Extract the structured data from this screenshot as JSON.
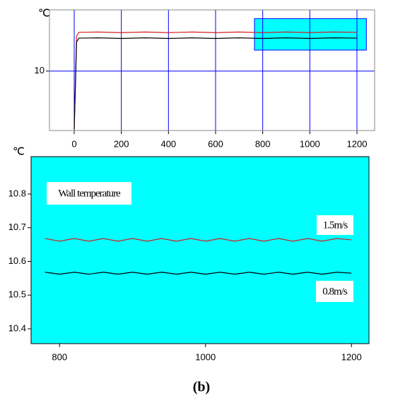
{
  "chart_data": [
    {
      "type": "line",
      "y_unit": "℃",
      "x": [
        0,
        10,
        20,
        100,
        200,
        300,
        400,
        500,
        600,
        700,
        800,
        900,
        1000,
        1100,
        1200
      ],
      "series": [
        {
          "name": "1.5m/s",
          "color": "#d02020",
          "values": [
            9.0,
            10.6,
            10.665,
            10.67,
            10.66,
            10.67,
            10.66,
            10.67,
            10.66,
            10.67,
            10.66,
            10.67,
            10.66,
            10.67,
            10.665
          ]
        },
        {
          "name": "0.8m/s",
          "color": "#000000",
          "values": [
            9.0,
            10.5,
            10.565,
            10.57,
            10.56,
            10.57,
            10.56,
            10.57,
            10.56,
            10.57,
            10.56,
            10.57,
            10.56,
            10.57,
            10.565
          ]
        }
      ],
      "xlim": [
        -105,
        1275
      ],
      "ylim": [
        8.98,
        11.05
      ],
      "xticks": [
        0,
        200,
        400,
        600,
        800,
        1000,
        1200
      ],
      "yticks": [
        10
      ],
      "grid": true,
      "grid_color": "#0000ff",
      "highlight": {
        "xlim": [
          765,
          1240
        ],
        "ylim": [
          10.36,
          10.9
        ],
        "color": "#00ffff"
      }
    },
    {
      "type": "line",
      "y_unit": "℃",
      "x": [
        780,
        800,
        820,
        840,
        860,
        880,
        900,
        920,
        940,
        960,
        980,
        1000,
        1020,
        1040,
        1060,
        1080,
        1100,
        1120,
        1140,
        1160,
        1180,
        1200
      ],
      "series": [
        {
          "name": "1.5m/s",
          "color": "#d02020",
          "values": [
            10.668,
            10.66,
            10.668,
            10.66,
            10.668,
            10.66,
            10.668,
            10.66,
            10.668,
            10.66,
            10.668,
            10.66,
            10.668,
            10.66,
            10.668,
            10.66,
            10.668,
            10.66,
            10.668,
            10.66,
            10.668,
            10.664
          ]
        },
        {
          "name": "0.8m/s",
          "color": "#000000",
          "values": [
            10.568,
            10.562,
            10.568,
            10.562,
            10.568,
            10.562,
            10.568,
            10.562,
            10.568,
            10.562,
            10.568,
            10.562,
            10.568,
            10.562,
            10.568,
            10.562,
            10.568,
            10.562,
            10.568,
            10.562,
            10.568,
            10.565
          ]
        }
      ],
      "xlim": [
        761,
        1224
      ],
      "ylim": [
        10.356,
        10.911
      ],
      "xticks": [
        800,
        1000,
        1200
      ],
      "yticks": [
        10.4,
        10.5,
        10.6,
        10.7,
        10.8
      ],
      "grid": false,
      "background": "#00ffff",
      "annotations": [
        "Wall temperature",
        "1.5m/s",
        "0.8m/s"
      ]
    }
  ],
  "caption": "(b)"
}
